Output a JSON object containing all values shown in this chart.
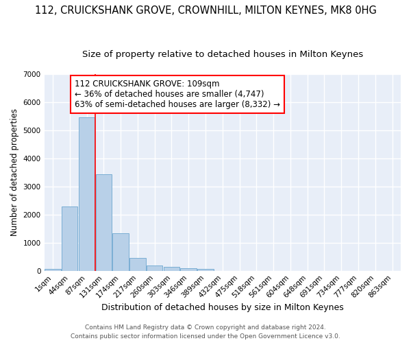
{
  "title": "112, CRUICKSHANK GROVE, CROWNHILL, MILTON KEYNES, MK8 0HG",
  "subtitle": "Size of property relative to detached houses in Milton Keynes",
  "xlabel": "Distribution of detached houses by size in Milton Keynes",
  "ylabel": "Number of detached properties",
  "bar_color": "#b8d0e8",
  "bar_edge_color": "#7aaed4",
  "categories": [
    "1sqm",
    "44sqm",
    "87sqm",
    "131sqm",
    "174sqm",
    "217sqm",
    "260sqm",
    "303sqm",
    "346sqm",
    "389sqm",
    "432sqm",
    "475sqm",
    "518sqm",
    "561sqm",
    "604sqm",
    "648sqm",
    "691sqm",
    "734sqm",
    "777sqm",
    "820sqm",
    "863sqm"
  ],
  "values": [
    75,
    2280,
    5450,
    3420,
    1330,
    460,
    190,
    150,
    80,
    65,
    0,
    0,
    0,
    0,
    0,
    0,
    0,
    0,
    0,
    0,
    0
  ],
  "ylim": [
    0,
    7000
  ],
  "yticks": [
    0,
    1000,
    2000,
    3000,
    4000,
    5000,
    6000,
    7000
  ],
  "red_line_x": 2.5,
  "annotation_line1": "112 CRUICKSHANK GROVE: 109sqm",
  "annotation_line2": "← 36% of detached houses are smaller (4,747)",
  "annotation_line3": "63% of semi-detached houses are larger (8,332) →",
  "footer_line1": "Contains HM Land Registry data © Crown copyright and database right 2024.",
  "footer_line2": "Contains public sector information licensed under the Open Government Licence v3.0.",
  "fig_background": "#ffffff",
  "axes_background": "#e8eef8",
  "grid_color": "#ffffff",
  "title_fontsize": 10.5,
  "subtitle_fontsize": 9.5,
  "tick_fontsize": 7.5,
  "ylabel_fontsize": 8.5,
  "xlabel_fontsize": 9,
  "annotation_fontsize": 8.5,
  "footer_fontsize": 6.5
}
